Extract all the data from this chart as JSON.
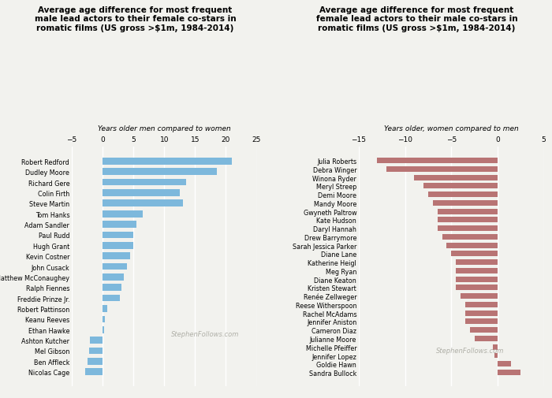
{
  "left_title": "Average age difference for most frequent\nmale lead actors to their female co-stars in\nromatic films (US gross >$1m, 1984-2014)",
  "right_title": "Average age difference for most frequent\nfemale lead actors to their male co-stars in\nromatic films (US gross >$1m, 1984-2014)",
  "left_subtitle": "Years older men compared to women",
  "right_subtitle": "Years older, women compared to men",
  "left_names": [
    "Robert Redford",
    "Dudley Moore",
    "Richard Gere",
    "Colin Firth",
    "Steve Martin",
    "Tom Hanks",
    "Adam Sandler",
    "Paul Rudd",
    "Hugh Grant",
    "Kevin Costner",
    "John Cusack",
    "Matthew McConaughey",
    "Ralph Fiennes",
    "Freddie Prinze Jr.",
    "Robert Pattinson",
    "Keanu Reeves",
    "Ethan Hawke",
    "Ashton Kutcher",
    "Mel Gibson",
    "Ben Affleck",
    "Nicolas Cage"
  ],
  "left_values": [
    21.0,
    18.5,
    13.5,
    12.5,
    13.0,
    6.5,
    5.5,
    5.0,
    5.0,
    4.5,
    4.0,
    3.5,
    3.0,
    2.8,
    0.8,
    0.4,
    0.3,
    -2.0,
    -2.2,
    -2.5,
    -2.8
  ],
  "right_names": [
    "Julia Roberts",
    "Debra Winger",
    "Winona Ryder",
    "Meryl Streep",
    "Demi Moore",
    "Mandy Moore",
    "Gwyneth Paltrow",
    "Kate Hudson",
    "Daryl Hannah",
    "Drew Barrymore",
    "Sarah Jessica Parker",
    "Diane Lane",
    "Katherine Heigl",
    "Meg Ryan",
    "Diane Keaton",
    "Kristen Stewart",
    "Renée Zellweger",
    "Reese Witherspoon",
    "Rachel McAdams",
    "Jennifer Aniston",
    "Cameron Diaz",
    "Julianne Moore",
    "Michelle Pfeiffer",
    "Jennifer Lopez",
    "Goldie Hawn",
    "Sandra Bullock"
  ],
  "right_values": [
    -13.0,
    -12.0,
    -9.0,
    -8.0,
    -7.5,
    -7.0,
    -6.5,
    -6.5,
    -6.5,
    -6.0,
    -5.5,
    -5.0,
    -4.5,
    -4.5,
    -4.5,
    -4.5,
    -4.0,
    -3.5,
    -3.5,
    -3.5,
    -3.0,
    -2.5,
    -0.5,
    -0.3,
    1.5,
    2.5
  ],
  "left_bar_color": "#7db8dc",
  "right_bar_color": "#b87474",
  "background_color": "#f2f2ee",
  "watermark": "StephenFollows.com",
  "left_xlim": [
    -5,
    25
  ],
  "left_xticks": [
    -5,
    0,
    5,
    10,
    15,
    20,
    25
  ],
  "right_xlim": [
    -15,
    5
  ],
  "right_xticks": [
    -15,
    -10,
    -5,
    0,
    5
  ]
}
